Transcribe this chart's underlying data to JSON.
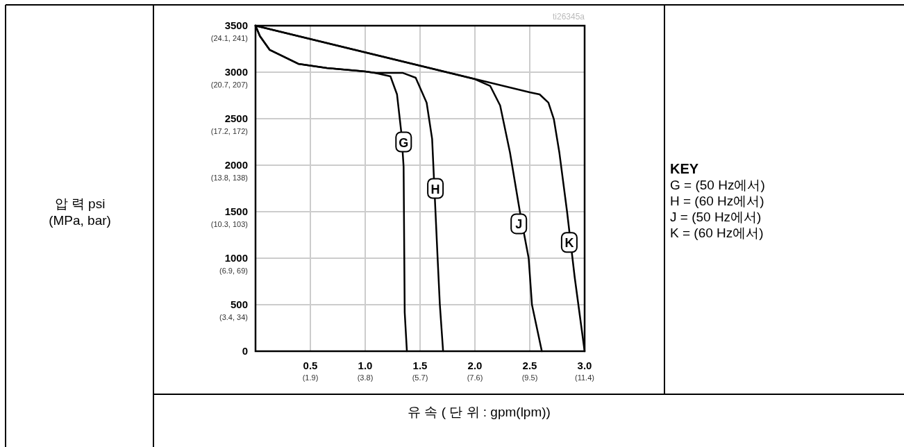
{
  "chart_data": {
    "type": "line",
    "xlabel": "유 속 ( 단 위 :   gpm(lpm))",
    "legend_title": "KEY",
    "grid": true,
    "line_style": "solid",
    "marker": "none",
    "xlim": [
      0,
      3.0
    ],
    "ylim": [
      0,
      3500
    ],
    "xticks": [
      {
        "value": 0.5,
        "label": "0.5"
      },
      {
        "value": 1.0,
        "label": "1.0"
      },
      {
        "value": 1.5,
        "label": "1.5"
      },
      {
        "value": 2.0,
        "label": "2.0"
      },
      {
        "value": 2.5,
        "label": "2.5"
      },
      {
        "value": 3.0,
        "label": "3.0"
      }
    ],
    "yticks": [
      0,
      500,
      1000,
      1500,
      2000,
      2500,
      3000,
      3500
    ],
    "series": [
      {
        "color": "#000000",
        "x": [
          0,
          0.04,
          0.13,
          0.39,
          0.65,
          1.0,
          1.09,
          1.23,
          1.29,
          1.33,
          1.35,
          1.36,
          1.38
        ],
        "values": [
          3500,
          3388,
          3239,
          3090,
          3045,
          3008,
          2993,
          2955,
          2761,
          2343,
          1985,
          418,
          0
        ]
      },
      {
        "color": "#000000",
        "x": [
          0,
          0.04,
          0.13,
          0.39,
          0.65,
          1.0,
          1.09,
          1.34,
          1.46,
          1.56,
          1.61,
          1.66,
          1.68,
          1.71
        ],
        "values": [
          3500,
          3388,
          3239,
          3090,
          3045,
          3008,
          2993,
          2993,
          2940,
          2672,
          2283,
          1000,
          507,
          0
        ]
      },
      {
        "color": "#000000",
        "x": [
          0,
          2.0,
          2.14,
          2.23,
          2.32,
          2.41,
          2.49,
          2.52,
          2.61
        ],
        "values": [
          3500,
          2925,
          2851,
          2642,
          2134,
          1500,
          1000,
          500,
          0
        ]
      },
      {
        "color": "#000000",
        "x": [
          0,
          2.5,
          2.59,
          2.67,
          2.72,
          2.77,
          2.84,
          2.91,
          3.0
        ],
        "values": [
          3500,
          2784,
          2761,
          2672,
          2493,
          2134,
          1500,
          791,
          0
        ]
      }
    ],
    "annotations": [
      "ti26345a",
      "압 력  psi\n(MPa, bar)",
      "(3.4, 34)",
      "(6.9, 69)",
      "(10.3, 103)",
      "(13.8, 138)",
      "(17.2, 172)",
      "(20.7, 207)",
      "(24.1, 241)",
      "(1.9)",
      "(3.8)",
      "(5.7)",
      "(7.6)",
      "(9.5)",
      "(11.4)",
      "G = (50 Hz에서)",
      "H = (60 Hz에서)",
      "J = (50 Hz에서)",
      "K = (60 Hz에서)",
      {
        "text": "G",
        "x": 1.35,
        "y": 2250
      },
      {
        "text": "H",
        "x": 1.64,
        "y": 1750
      },
      {
        "text": "J",
        "x": 2.4,
        "y": 1370
      },
      {
        "text": "K",
        "x": 2.86,
        "y": 1170
      }
    ]
  }
}
